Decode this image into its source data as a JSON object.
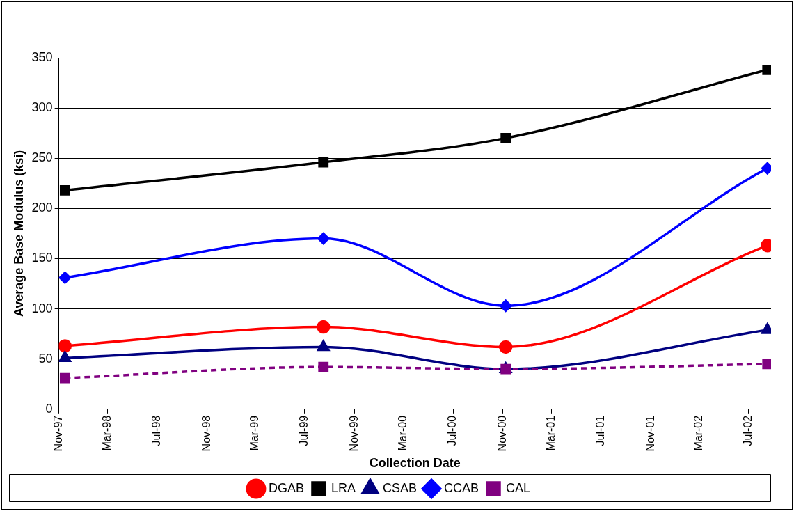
{
  "chart_data": {
    "type": "line",
    "xlabel": "Collection Date",
    "ylabel": "Average Base Modulus (ksi)",
    "x": [
      "1997-11-16",
      "1999-08-16",
      "2000-11-08",
      "2002-08-16"
    ],
    "series": [
      {
        "name": "DGAB",
        "color": "#ff0000",
        "marker": "circle",
        "line_style": "solid",
        "values": [
          63,
          82,
          62,
          163
        ]
      },
      {
        "name": "LRA",
        "color": "#000000",
        "marker": "square",
        "line_style": "solid",
        "values": [
          218,
          246,
          270,
          338
        ]
      },
      {
        "name": "CSAB",
        "color": "#000080",
        "marker": "triangle",
        "line_style": "solid",
        "values": [
          51,
          62,
          40,
          79
        ]
      },
      {
        "name": "CCAB",
        "color": "#0000ff",
        "marker": "diamond",
        "line_style": "solid",
        "values": [
          131,
          170,
          103,
          240
        ]
      },
      {
        "name": "CAL",
        "color": "#800080",
        "marker": "square",
        "line_style": "dashed",
        "values": [
          31,
          42,
          40,
          45
        ]
      }
    ],
    "xlim": [
      "1997-11-01",
      "2002-08-25"
    ],
    "xticks": [
      {
        "value": "1997-11-01",
        "label": "Nov-97"
      },
      {
        "value": "1998-03-01",
        "label": "Mar-98"
      },
      {
        "value": "1998-07-01",
        "label": "Jul-98"
      },
      {
        "value": "1998-11-01",
        "label": "Nov-98"
      },
      {
        "value": "1999-03-01",
        "label": "Mar-99"
      },
      {
        "value": "1999-07-01",
        "label": "Jul-99"
      },
      {
        "value": "1999-11-01",
        "label": "Nov-99"
      },
      {
        "value": "2000-03-01",
        "label": "Mar-00"
      },
      {
        "value": "2000-07-01",
        "label": "Jul-00"
      },
      {
        "value": "2000-11-01",
        "label": "Nov-00"
      },
      {
        "value": "2001-03-01",
        "label": "Mar-01"
      },
      {
        "value": "2001-07-01",
        "label": "Jul-01"
      },
      {
        "value": "2001-11-01",
        "label": "Nov-01"
      },
      {
        "value": "2002-03-01",
        "label": "Mar-02"
      },
      {
        "value": "2002-07-01",
        "label": "Jul-02"
      }
    ],
    "ylim": [
      0,
      350
    ],
    "yticks": [
      0,
      50,
      100,
      150,
      200,
      250,
      300,
      350
    ],
    "grid": "y",
    "legend": "bottom"
  }
}
